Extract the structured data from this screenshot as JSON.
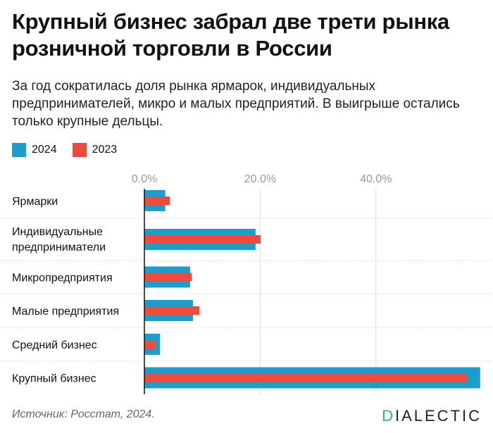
{
  "title": "Крупный бизнес забрал две трети рынка розничной торговли в России",
  "subtitle": "За год сократилась доля рынка ярмарок, индивидуальных предпринимателей, микро и малых предприятий. В выигрыше остались только крупные дельцы.",
  "source": "Источник: Росстат, 2024.",
  "logo": "DIALECTIC",
  "colors": {
    "2024": "#1a9fcc",
    "2023": "#ef4a3c",
    "logo_accent": "#1fbf6a"
  },
  "chart_data": {
    "type": "bar",
    "orientation": "horizontal",
    "categories": [
      "Ярмарки",
      "Индивидуальные предприниматели",
      "Микропредприятия",
      "Малые предприятия",
      "Средний бизнес",
      "Крупный бизнес"
    ],
    "series": [
      {
        "name": "2024",
        "values": [
          3.6,
          19.2,
          7.9,
          8.4,
          2.7,
          58.0
        ]
      },
      {
        "name": "2023",
        "values": [
          4.4,
          20.1,
          8.2,
          9.5,
          2.0,
          55.8
        ]
      }
    ],
    "xticks": [
      "0.0%",
      "20.0%",
      "40.0%"
    ],
    "xtick_values": [
      0,
      20,
      40
    ],
    "xlim": [
      0,
      58
    ],
    "grid": true,
    "legend": "top-left"
  }
}
